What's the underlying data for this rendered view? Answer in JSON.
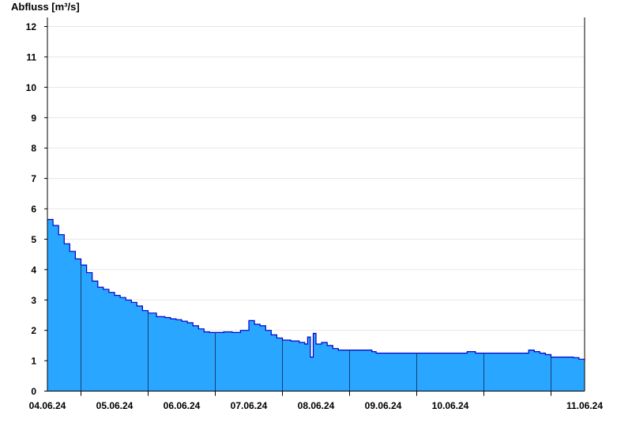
{
  "chart_data": {
    "type": "area",
    "title": "",
    "ylabel": "Abfluss [m³/s]",
    "xlabel": "",
    "ylim": [
      0,
      12.3
    ],
    "yticks": [
      0,
      1,
      2,
      3,
      4,
      5,
      6,
      7,
      8,
      9,
      10,
      11,
      12
    ],
    "x_range": [
      "2024-06-03 12:00",
      "2024-06-11 12:00"
    ],
    "day_ticks": [
      "2024-06-04",
      "2024-06-05",
      "2024-06-06",
      "2024-06-07",
      "2024-06-08",
      "2024-06-09",
      "2024-06-10",
      "2024-06-11"
    ],
    "x_tick_labels": [
      "04.06.24",
      "05.06.24",
      "06.06.24",
      "07.06.24",
      "08.06.24",
      "09.06.24",
      "10.06.24",
      "11.06.24"
    ],
    "grid": true,
    "colors": {
      "fill": "#29a6ff",
      "line": "#0000c8",
      "grid": "#e6e6e6",
      "axis": "#000000",
      "day_divider": "#1a3f73"
    },
    "series": [
      {
        "x": [
          "2024-06-03 12:00",
          "2024-06-03 14:00",
          "2024-06-03 16:00",
          "2024-06-03 18:00",
          "2024-06-03 20:00",
          "2024-06-03 22:00",
          "2024-06-04 00:00",
          "2024-06-04 02:00",
          "2024-06-04 04:00",
          "2024-06-04 06:00",
          "2024-06-04 08:00",
          "2024-06-04 10:00",
          "2024-06-04 12:00",
          "2024-06-04 14:00",
          "2024-06-04 16:00",
          "2024-06-04 18:00",
          "2024-06-04 20:00",
          "2024-06-04 22:00",
          "2024-06-05 00:00",
          "2024-06-05 03:00",
          "2024-06-05 06:00",
          "2024-06-05 08:00",
          "2024-06-05 10:00",
          "2024-06-05 12:00",
          "2024-06-05 14:00",
          "2024-06-05 16:00",
          "2024-06-05 18:00",
          "2024-06-05 20:00",
          "2024-06-05 22:00",
          "2024-06-06 00:00",
          "2024-06-06 03:00",
          "2024-06-06 06:00",
          "2024-06-06 09:00",
          "2024-06-06 12:00",
          "2024-06-06 14:00",
          "2024-06-06 16:00",
          "2024-06-06 18:00",
          "2024-06-06 20:00",
          "2024-06-06 22:00",
          "2024-06-07 00:00",
          "2024-06-07 03:00",
          "2024-06-07 06:00",
          "2024-06-07 08:00",
          "2024-06-07 09:00",
          "2024-06-07 10:00",
          "2024-06-07 11:00",
          "2024-06-07 12:00",
          "2024-06-07 14:00",
          "2024-06-07 16:00",
          "2024-06-07 18:00",
          "2024-06-07 20:00",
          "2024-06-07 22:00",
          "2024-06-08 00:00",
          "2024-06-08 03:00",
          "2024-06-08 06:00",
          "2024-06-08 07:00",
          "2024-06-08 08:00",
          "2024-06-08 09:00",
          "2024-06-08 09:30",
          "2024-06-08 10:00",
          "2024-06-08 11:00",
          "2024-06-08 12:00",
          "2024-06-08 13:00",
          "2024-06-08 14:00",
          "2024-06-08 15:00",
          "2024-06-08 17:00",
          "2024-06-08 20:00",
          "2024-06-09 00:00",
          "2024-06-09 06:00",
          "2024-06-09 12:00",
          "2024-06-09 18:00",
          "2024-06-09 21:00",
          "2024-06-10 00:00",
          "2024-06-10 06:00",
          "2024-06-10 12:00",
          "2024-06-10 16:00",
          "2024-06-10 18:00",
          "2024-06-10 20:00",
          "2024-06-10 22:00",
          "2024-06-11 00:00",
          "2024-06-11 04:00",
          "2024-06-11 08:00",
          "2024-06-11 10:00",
          "2024-06-11 12:00"
        ],
        "y": [
          5.65,
          5.45,
          5.15,
          4.85,
          4.6,
          4.35,
          4.15,
          3.9,
          3.62,
          3.42,
          3.35,
          3.25,
          3.15,
          3.08,
          3.0,
          2.92,
          2.8,
          2.65,
          2.57,
          2.45,
          2.42,
          2.38,
          2.35,
          2.3,
          2.25,
          2.15,
          2.05,
          1.95,
          1.93,
          1.93,
          1.95,
          1.93,
          2.0,
          2.32,
          2.2,
          2.15,
          2.0,
          1.85,
          1.75,
          1.68,
          1.65,
          1.6,
          1.55,
          1.78,
          1.12,
          1.9,
          1.55,
          1.6,
          1.5,
          1.4,
          1.35,
          1.35,
          1.35,
          1.35,
          1.35,
          1.35,
          1.3,
          1.3,
          1.25,
          1.25,
          1.25,
          1.25,
          1.25,
          1.25,
          1.25,
          1.25,
          1.25,
          1.25,
          1.25,
          1.25,
          1.3,
          1.25,
          1.25,
          1.25,
          1.25,
          1.35,
          1.3,
          1.25,
          1.2,
          1.12,
          1.12,
          1.1,
          1.05,
          1.0
        ]
      }
    ]
  }
}
